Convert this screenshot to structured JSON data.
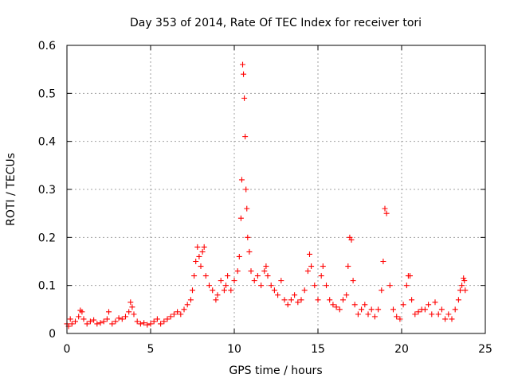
{
  "chart_data": {
    "type": "scatter",
    "title": "Day 353 of 2014, Rate Of TEC Index for receiver tori",
    "xlabel": "GPS time / hours",
    "ylabel": "ROTI / TECUs",
    "xlim": [
      0,
      25
    ],
    "ylim": [
      0,
      0.6
    ],
    "xticks": [
      0,
      5,
      10,
      15,
      20,
      25
    ],
    "xtick_labels": [
      "0",
      "5",
      "10",
      "15",
      "20",
      "25"
    ],
    "yticks": [
      0,
      0.1,
      0.2,
      0.3,
      0.4,
      0.5,
      0.6
    ],
    "ytick_labels": [
      "0",
      "0.1",
      "0.2",
      "0.3",
      "0.4",
      "0.5",
      "0.6"
    ],
    "grid": true,
    "marker": "+",
    "color": "#ff0000",
    "series": [
      {
        "name": "ROTI",
        "x": [
          0.0,
          0.1,
          0.2,
          0.3,
          0.5,
          0.7,
          0.8,
          0.9,
          1.0,
          1.2,
          1.4,
          1.6,
          1.8,
          2.0,
          2.2,
          2.4,
          2.5,
          2.7,
          2.9,
          3.1,
          3.3,
          3.5,
          3.7,
          3.8,
          3.9,
          4.0,
          4.2,
          4.4,
          4.6,
          4.8,
          5.0,
          5.2,
          5.4,
          5.6,
          5.8,
          6.0,
          6.2,
          6.4,
          6.6,
          6.8,
          7.0,
          7.2,
          7.4,
          7.5,
          7.6,
          7.7,
          7.8,
          7.9,
          8.0,
          8.1,
          8.2,
          8.3,
          8.5,
          8.7,
          8.9,
          9.0,
          9.2,
          9.4,
          9.5,
          9.6,
          9.8,
          10.0,
          10.2,
          10.3,
          10.4,
          10.45,
          10.5,
          10.55,
          10.6,
          10.65,
          10.7,
          10.75,
          10.8,
          10.9,
          11.0,
          11.2,
          11.4,
          11.6,
          11.8,
          11.9,
          12.0,
          12.2,
          12.4,
          12.6,
          12.8,
          13.0,
          13.2,
          13.4,
          13.6,
          13.8,
          14.0,
          14.2,
          14.4,
          14.5,
          14.6,
          14.8,
          15.0,
          15.2,
          15.3,
          15.5,
          15.7,
          15.9,
          16.1,
          16.3,
          16.5,
          16.7,
          16.8,
          16.9,
          17.0,
          17.1,
          17.2,
          17.4,
          17.6,
          17.8,
          18.0,
          18.2,
          18.4,
          18.6,
          18.8,
          18.9,
          19.0,
          19.1,
          19.3,
          19.5,
          19.7,
          19.9,
          20.1,
          20.3,
          20.4,
          20.5,
          20.6,
          20.8,
          21.0,
          21.2,
          21.4,
          21.6,
          21.8,
          22.0,
          22.2,
          22.4,
          22.6,
          22.8,
          23.0,
          23.2,
          23.4,
          23.5,
          23.6,
          23.7,
          23.75,
          23.8
        ],
        "y": [
          0.02,
          0.015,
          0.03,
          0.02,
          0.025,
          0.035,
          0.048,
          0.045,
          0.03,
          0.02,
          0.025,
          0.028,
          0.02,
          0.022,
          0.025,
          0.03,
          0.045,
          0.02,
          0.025,
          0.032,
          0.03,
          0.035,
          0.045,
          0.065,
          0.055,
          0.04,
          0.025,
          0.02,
          0.022,
          0.018,
          0.02,
          0.025,
          0.03,
          0.02,
          0.025,
          0.03,
          0.035,
          0.04,
          0.045,
          0.04,
          0.05,
          0.06,
          0.07,
          0.09,
          0.12,
          0.15,
          0.18,
          0.16,
          0.14,
          0.17,
          0.18,
          0.12,
          0.1,
          0.09,
          0.07,
          0.08,
          0.11,
          0.09,
          0.1,
          0.12,
          0.09,
          0.11,
          0.13,
          0.16,
          0.24,
          0.32,
          0.56,
          0.54,
          0.49,
          0.41,
          0.3,
          0.26,
          0.2,
          0.17,
          0.13,
          0.11,
          0.12,
          0.1,
          0.13,
          0.14,
          0.12,
          0.1,
          0.09,
          0.08,
          0.11,
          0.07,
          0.06,
          0.07,
          0.08,
          0.065,
          0.07,
          0.09,
          0.13,
          0.165,
          0.14,
          0.1,
          0.07,
          0.12,
          0.14,
          0.1,
          0.07,
          0.06,
          0.055,
          0.05,
          0.07,
          0.08,
          0.14,
          0.2,
          0.195,
          0.11,
          0.06,
          0.04,
          0.05,
          0.06,
          0.04,
          0.05,
          0.035,
          0.05,
          0.09,
          0.15,
          0.26,
          0.25,
          0.1,
          0.05,
          0.035,
          0.03,
          0.06,
          0.1,
          0.12,
          0.12,
          0.07,
          0.04,
          0.045,
          0.05,
          0.05,
          0.06,
          0.04,
          0.065,
          0.04,
          0.05,
          0.03,
          0.04,
          0.03,
          0.05,
          0.07,
          0.09,
          0.1,
          0.115,
          0.11,
          0.09
        ]
      }
    ]
  }
}
